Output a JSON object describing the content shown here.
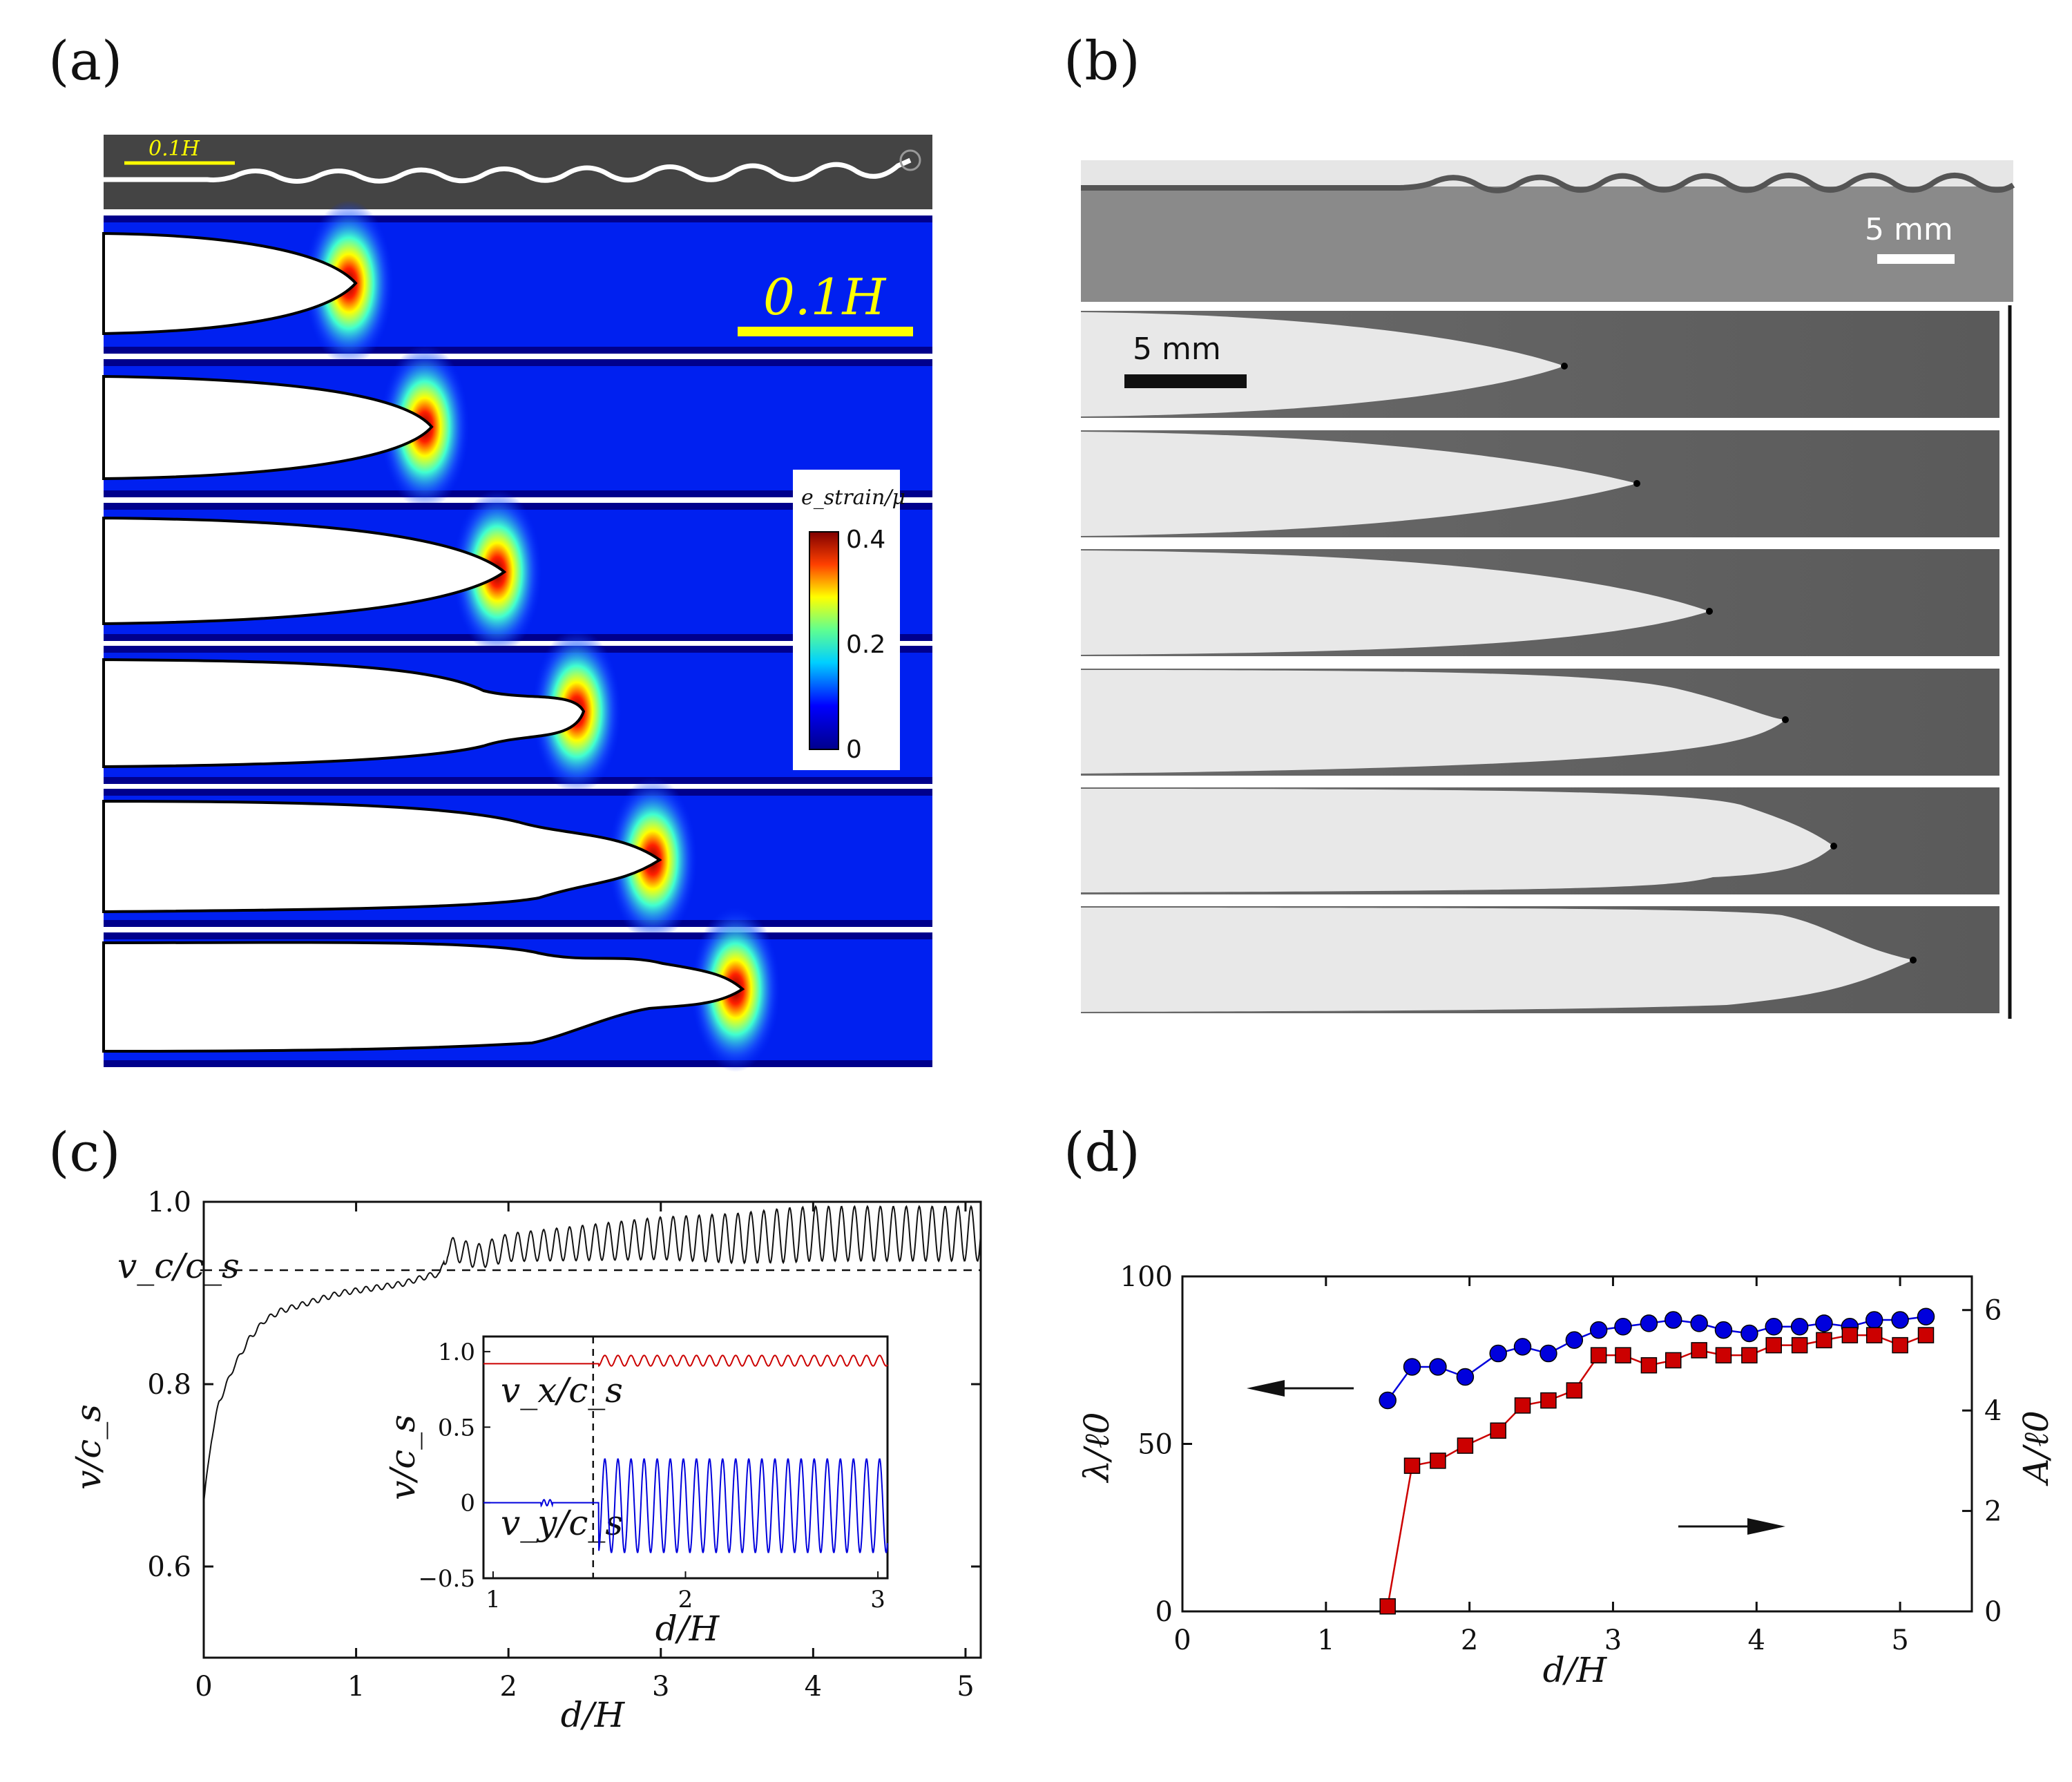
{
  "panels": {
    "a": {
      "label": "(a)",
      "top_scale_label": "0.1H",
      "scale_label": "0.1H",
      "colorbar": {
        "title": "e_strain/μ",
        "ticks": [
          "0.4",
          "0.2",
          "0"
        ]
      }
    },
    "b": {
      "label": "(b)",
      "top_scale_label": "5 mm",
      "scale_label": "5 mm"
    },
    "c": {
      "label": "(c)",
      "xlabel": "d/H",
      "ylabel": "v/c_s",
      "xticks": [
        "0",
        "1",
        "2",
        "3",
        "4",
        "5"
      ],
      "yticks": [
        "0.6",
        "0.8",
        "1.0"
      ],
      "vc_label": "v_c/c_s",
      "inset": {
        "xlabel": "d/H",
        "ylabel": "v/c_s",
        "xticks": [
          "1",
          "2",
          "3"
        ],
        "yticks": [
          "−0.5",
          "0",
          "0.5",
          "1.0"
        ],
        "vx_label": "v_x/c_s",
        "vy_label": "v_y/c_s"
      }
    },
    "d": {
      "label": "(d)",
      "xlabel": "d/H",
      "ylabel_left": "λ/ℓ0",
      "ylabel_right": "A/ℓ0",
      "xticks": [
        "0",
        "1",
        "2",
        "3",
        "4",
        "5"
      ],
      "yticks_left": [
        "0",
        "50",
        "100"
      ],
      "yticks_right": [
        "0",
        "2",
        "4",
        "6"
      ]
    }
  },
  "colors": {
    "jet_dark": "#00008c",
    "jet_blue": "#0022ff",
    "red": "#cc0000",
    "blue": "#0000dd"
  },
  "chart_data": [
    {
      "type": "line",
      "title": "(c)",
      "xlabel": "d/H",
      "ylabel": "v/c_s",
      "xlim": [
        0,
        5.1
      ],
      "ylim": [
        0.5,
        1.0
      ],
      "series": [
        {
          "name": "v/c_s",
          "x": [
            0,
            0.05,
            0.1,
            0.2,
            0.3,
            0.4,
            0.5,
            0.7,
            0.9,
            1.1,
            1.3,
            1.5,
            1.55,
            1.6,
            1.8,
            2.0,
            2.5,
            3.0,
            3.5,
            4.0,
            4.5,
            5.1
          ],
          "y": [
            0.67,
            0.74,
            0.78,
            0.82,
            0.85,
            0.87,
            0.88,
            0.89,
            0.9,
            0.905,
            0.91,
            0.92,
            0.92,
            0.95,
            0.94,
            0.95,
            0.955,
            0.96,
            0.96,
            0.965,
            0.965,
            0.965
          ]
        },
        {
          "name": "v_c/c_s",
          "x": [
            0,
            5.1
          ],
          "y": [
            0.925,
            0.925
          ]
        }
      ]
    },
    {
      "type": "line",
      "title": "(c) inset",
      "xlabel": "d/H",
      "ylabel": "v/c_s",
      "xlim": [
        0.95,
        3.05
      ],
      "ylim": [
        -0.5,
        1.1
      ],
      "series": [
        {
          "name": "v_x/c_s",
          "x": [
            0.95,
            1.5,
            1.55,
            3.05
          ],
          "y": [
            0.92,
            0.93,
            0.94,
            0.94
          ]
        },
        {
          "name": "v_y/c_s",
          "x": [
            0.95,
            1.5,
            1.55,
            3.05
          ],
          "y": [
            0.0,
            0.0,
            0.0,
            0.0
          ]
        }
      ]
    },
    {
      "type": "scatter",
      "title": "(d)",
      "xlabel": "d/H",
      "ylabel": "λ/ℓ0",
      "ylabel_right": "A/ℓ0",
      "xlim": [
        0,
        5.5
      ],
      "ylim": [
        0,
        100
      ],
      "ylim_right": [
        0,
        6.67
      ],
      "series": [
        {
          "name": "λ/ℓ0 (left axis)",
          "x": [
            1.43,
            1.6,
            1.78,
            1.97,
            2.2,
            2.37,
            2.55,
            2.73,
            2.9,
            3.07,
            3.25,
            3.42,
            3.6,
            3.77,
            3.95,
            4.12,
            4.3,
            4.47,
            4.65,
            4.82,
            5.0,
            5.18
          ],
          "y": [
            63,
            73,
            73,
            70,
            77,
            79,
            77,
            81,
            84,
            85,
            86,
            87,
            86,
            84,
            83,
            85,
            85,
            86,
            85,
            87,
            87,
            88
          ]
        },
        {
          "name": "A/ℓ0 (right axis)",
          "x": [
            1.43,
            1.6,
            1.78,
            1.97,
            2.2,
            2.37,
            2.55,
            2.73,
            2.9,
            3.07,
            3.25,
            3.42,
            3.6,
            3.77,
            3.95,
            4.12,
            4.3,
            4.47,
            4.65,
            4.82,
            5.0,
            5.18
          ],
          "y": [
            0.1,
            2.9,
            3.0,
            3.3,
            3.6,
            4.1,
            4.2,
            4.4,
            5.1,
            5.1,
            4.9,
            5.0,
            5.2,
            5.1,
            5.1,
            5.3,
            5.3,
            5.4,
            5.5,
            5.5,
            5.3,
            5.5
          ]
        }
      ]
    }
  ]
}
